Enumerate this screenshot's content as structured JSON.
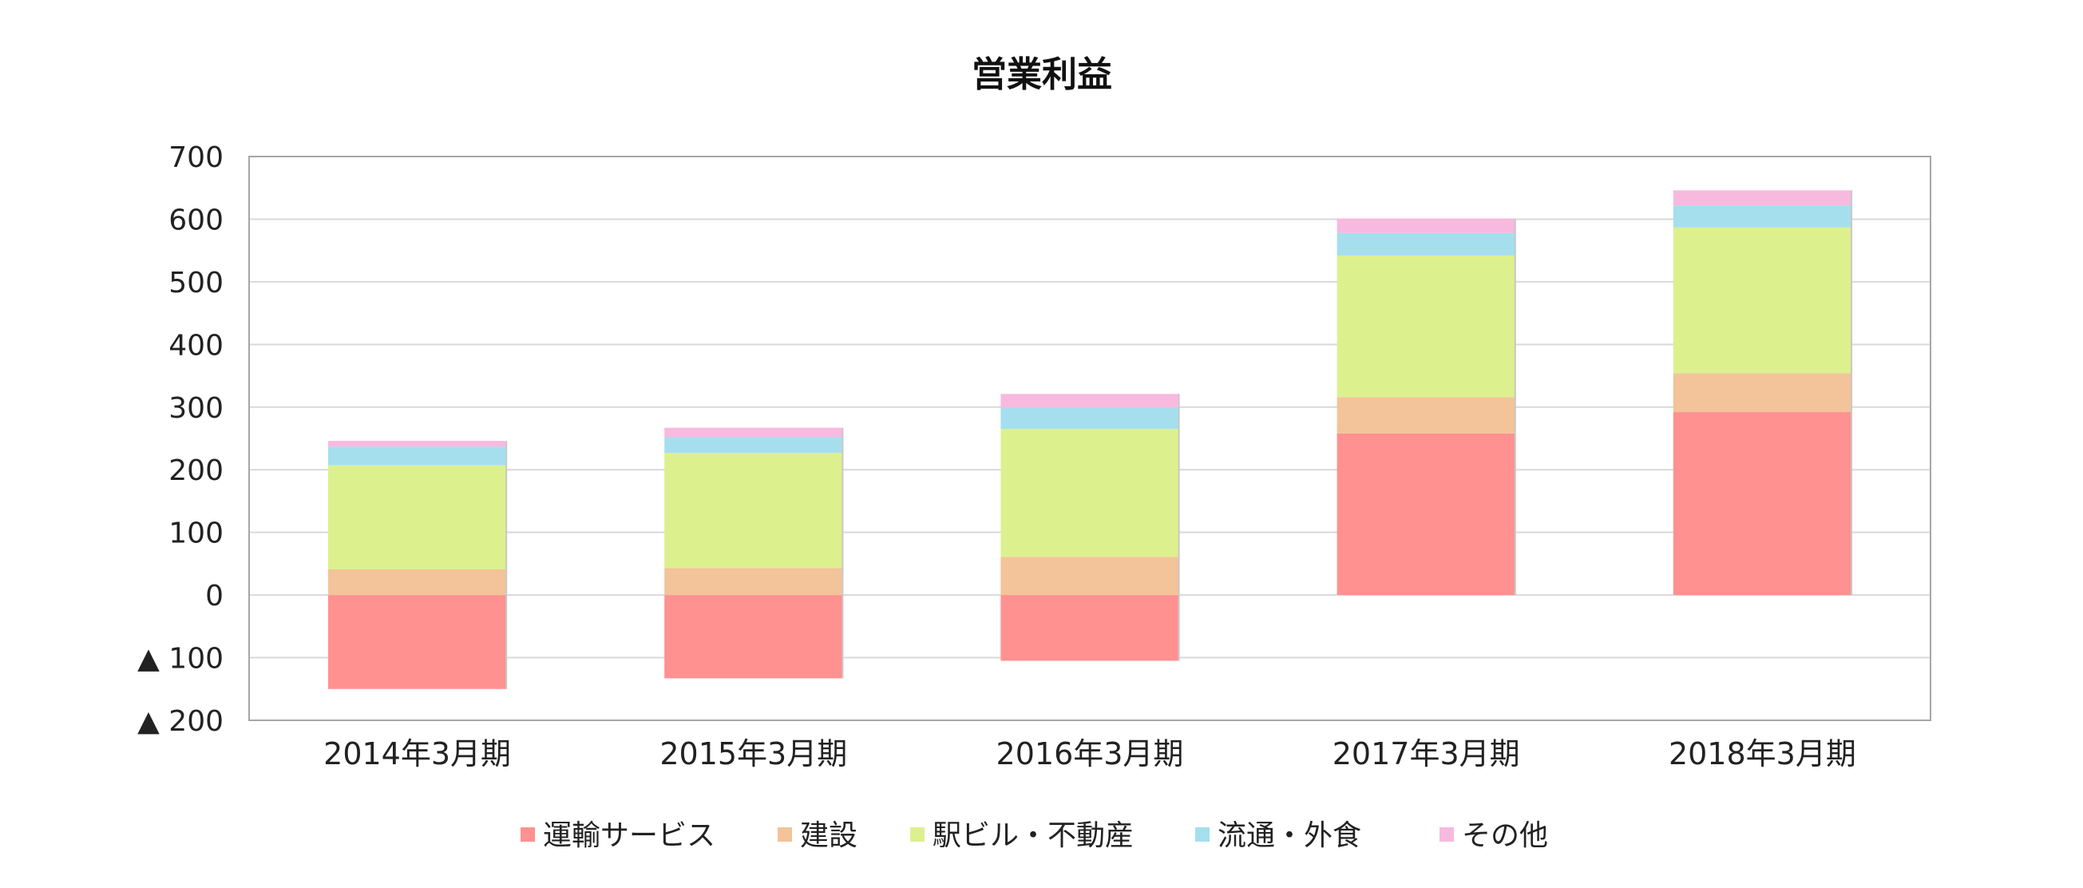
{
  "chart_data": {
    "type": "bar",
    "stacked": true,
    "title": "営業利益",
    "xlabel": "",
    "ylabel": "",
    "ylim": [
      -200,
      700
    ],
    "y_ticks": [
      700,
      600,
      500,
      400,
      300,
      200,
      100,
      0,
      -100,
      -200
    ],
    "y_tick_labels": [
      "700",
      "600",
      "500",
      "400",
      "300",
      "200",
      "100",
      "0",
      "▲ 100",
      "▲ 200"
    ],
    "categories": [
      "2014年3月期",
      "2015年3月期",
      "2016年3月期",
      "2017年3月期",
      "2018年3月期"
    ],
    "grid": true,
    "legend_position": "bottom",
    "series": [
      {
        "name": "運輸サービス",
        "color": "#ff9190",
        "values": [
          -150,
          -133,
          -105,
          258,
          292
        ]
      },
      {
        "name": "建設",
        "color": "#f3c39a",
        "values": [
          41,
          43,
          61,
          58,
          62
        ]
      },
      {
        "name": "駅ビル・不動産",
        "color": "#ddf08e",
        "values": [
          166,
          184,
          204,
          226,
          233
        ]
      },
      {
        "name": "流通・外食",
        "color": "#a5dfed",
        "values": [
          30,
          25,
          34,
          36,
          35
        ]
      },
      {
        "name": "その他",
        "color": "#f8b9de",
        "values": [
          9,
          15,
          22,
          23,
          24
        ]
      }
    ]
  }
}
